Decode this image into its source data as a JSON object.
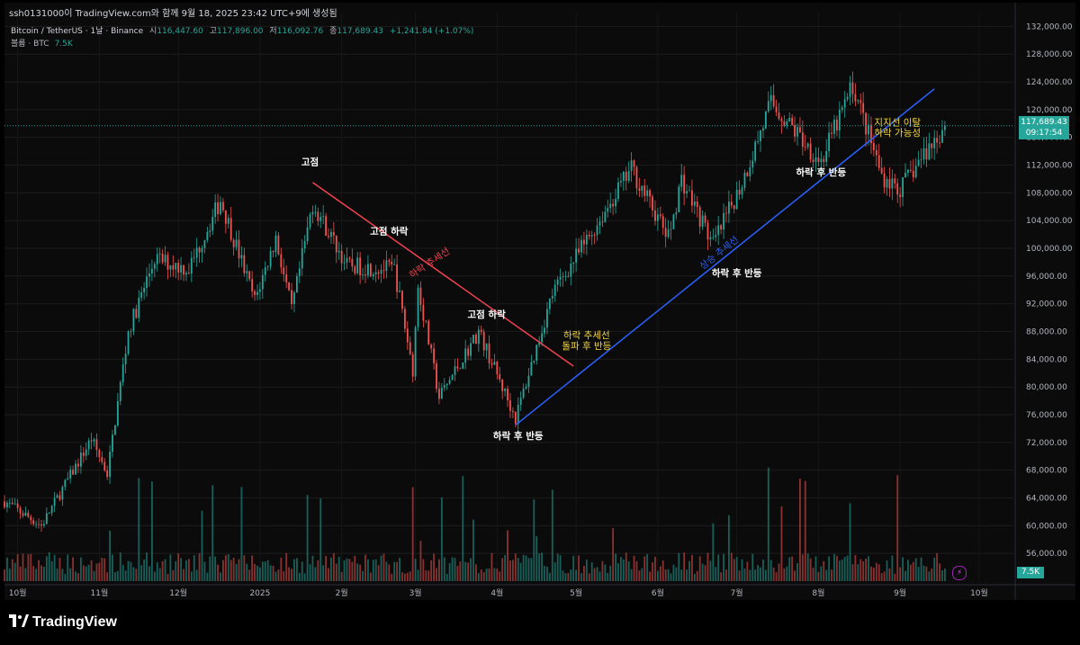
{
  "header": {
    "credit": "ssh0131000이 TradingView.com와 함께 9월 18, 2025 23:42 UTC+9에 생성됨",
    "symbol": "Bitcoin / TetherUS · 1날 · Binance",
    "open_label": "시",
    "open_value": "116,447.60",
    "high_label": "고",
    "high_value": "117,896.00",
    "low_label": "저",
    "low_value": "116,092.76",
    "close_label": "종",
    "close_value": "117,689.43",
    "change": "+1,241.84 (+1.07%)",
    "volume_label": "볼륨 · BTC",
    "volume_value": "7.5K"
  },
  "price_tag": {
    "price": "117,689.43",
    "countdown": "09:17:54"
  },
  "volume_tag": "7.5K",
  "brand": "TradingView",
  "colors": {
    "up": "#26a69a",
    "down": "#ef5350",
    "downtrend": "#f0434f",
    "uptrend": "#2962ff",
    "annotation_yellow": "#f5d742",
    "annotation_white": "#ffffff"
  },
  "chart_data": {
    "type": "candlestick",
    "symbol": "Bitcoin / TetherUS",
    "interval": "1날",
    "exchange": "Binance",
    "y_axis": {
      "position": "right",
      "range": [
        52000,
        134000
      ],
      "ticks": [
        "132,000.00",
        "128,000.00",
        "124,000.00",
        "120,000.00",
        "116,000.00",
        "112,000.00",
        "108,000.00",
        "104,000.00",
        "100,000.00",
        "96,000.00",
        "92,000.00",
        "88,000.00",
        "84,000.00",
        "80,000.00",
        "76,000.00",
        "72,000.00",
        "68,000.00",
        "64,000.00",
        "60,000.00",
        "56,000.00"
      ]
    },
    "x_axis": {
      "labels": [
        "10월",
        "11월",
        "12월",
        "2025",
        "2월",
        "3월",
        "4월",
        "5월",
        "6월",
        "7월",
        "8월",
        "9월",
        "10월"
      ],
      "range": [
        "2024-09-26",
        "2025-10-14"
      ]
    },
    "grid": true,
    "last_price": 117689.43,
    "key_points": [
      {
        "date": "2024-09-26",
        "price": 63500
      },
      {
        "date": "2024-10-10",
        "price": 60000
      },
      {
        "date": "2024-10-29",
        "price": 72500
      },
      {
        "date": "2024-11-04",
        "price": 67500
      },
      {
        "date": "2024-11-12",
        "price": 88000
      },
      {
        "date": "2024-11-22",
        "price": 98500
      },
      {
        "date": "2024-12-05",
        "price": 97000
      },
      {
        "date": "2024-12-17",
        "price": 107000
      },
      {
        "date": "2024-12-30",
        "price": 92500
      },
      {
        "date": "2025-01-07",
        "price": 101500
      },
      {
        "date": "2025-01-13",
        "price": 91000
      },
      {
        "date": "2025-01-21",
        "price": 106500
      },
      {
        "date": "2025-02-03",
        "price": 97500
      },
      {
        "date": "2025-02-21",
        "price": 97000
      },
      {
        "date": "2025-02-28",
        "price": 82500
      },
      {
        "date": "2025-03-02",
        "price": 94500
      },
      {
        "date": "2025-03-10",
        "price": 78500
      },
      {
        "date": "2025-03-25",
        "price": 88000
      },
      {
        "date": "2025-04-08",
        "price": 75500
      },
      {
        "date": "2025-04-22",
        "price": 93500
      },
      {
        "date": "2025-05-09",
        "price": 103500
      },
      {
        "date": "2025-05-22",
        "price": 111500
      },
      {
        "date": "2025-06-05",
        "price": 101500
      },
      {
        "date": "2025-06-10",
        "price": 110000
      },
      {
        "date": "2025-06-22",
        "price": 100500
      },
      {
        "date": "2025-07-03",
        "price": 109500
      },
      {
        "date": "2025-07-14",
        "price": 121000
      },
      {
        "date": "2025-08-02",
        "price": 112500
      },
      {
        "date": "2025-08-14",
        "price": 123500
      },
      {
        "date": "2025-08-25",
        "price": 110500
      },
      {
        "date": "2025-09-01",
        "price": 108500
      },
      {
        "date": "2025-09-10",
        "price": 113500
      },
      {
        "date": "2025-09-18",
        "price": 117689.43
      }
    ],
    "volume": {
      "label": "볼륨 · BTC",
      "last": "7.5K"
    },
    "trendlines": [
      {
        "name": "하락 추세선",
        "color": "#f0434f",
        "from": {
          "date": "2025-01-21",
          "price": 109500
        },
        "to": {
          "date": "2025-04-30",
          "price": 83000
        }
      },
      {
        "name": "상승 추세선",
        "color": "#2962ff",
        "from": {
          "date": "2025-04-08",
          "price": 74500
        },
        "to": {
          "date": "2025-09-14",
          "price": 123000
        }
      }
    ],
    "annotations": [
      {
        "text": "고점",
        "date": "2025-01-20",
        "price": 112000,
        "color": "white"
      },
      {
        "text": "고점 하락",
        "date": "2025-02-19",
        "price": 102000,
        "color": "white"
      },
      {
        "text": "하락 추세선",
        "date": "2025-03-07",
        "price": 97500,
        "color": "red",
        "angle": -34
      },
      {
        "text": "고점 하락",
        "date": "2025-03-28",
        "price": 90000,
        "color": "white"
      },
      {
        "text": "하락 후 반등",
        "date": "2025-04-09",
        "price": 72500,
        "color": "white"
      },
      {
        "text": "하락 추세선",
        "date": "2025-05-05",
        "price": 87000,
        "color": "yellow"
      },
      {
        "text": "돌파 후 반등",
        "date": "2025-05-05",
        "price": 85500,
        "color": "yellow"
      },
      {
        "text": "상승 추세선",
        "date": "2025-06-25",
        "price": 99000,
        "color": "blue",
        "angle": -39
      },
      {
        "text": "하락 후 반등",
        "date": "2025-07-01",
        "price": 96000,
        "color": "white"
      },
      {
        "text": "하락 후 반등",
        "date": "2025-08-02",
        "price": 110500,
        "color": "white"
      },
      {
        "text": "지지선 이탈",
        "date": "2025-08-31",
        "price": 117700,
        "color": "yellow"
      },
      {
        "text": "하락 가능성",
        "date": "2025-08-31",
        "price": 116200,
        "color": "yellow"
      }
    ]
  }
}
